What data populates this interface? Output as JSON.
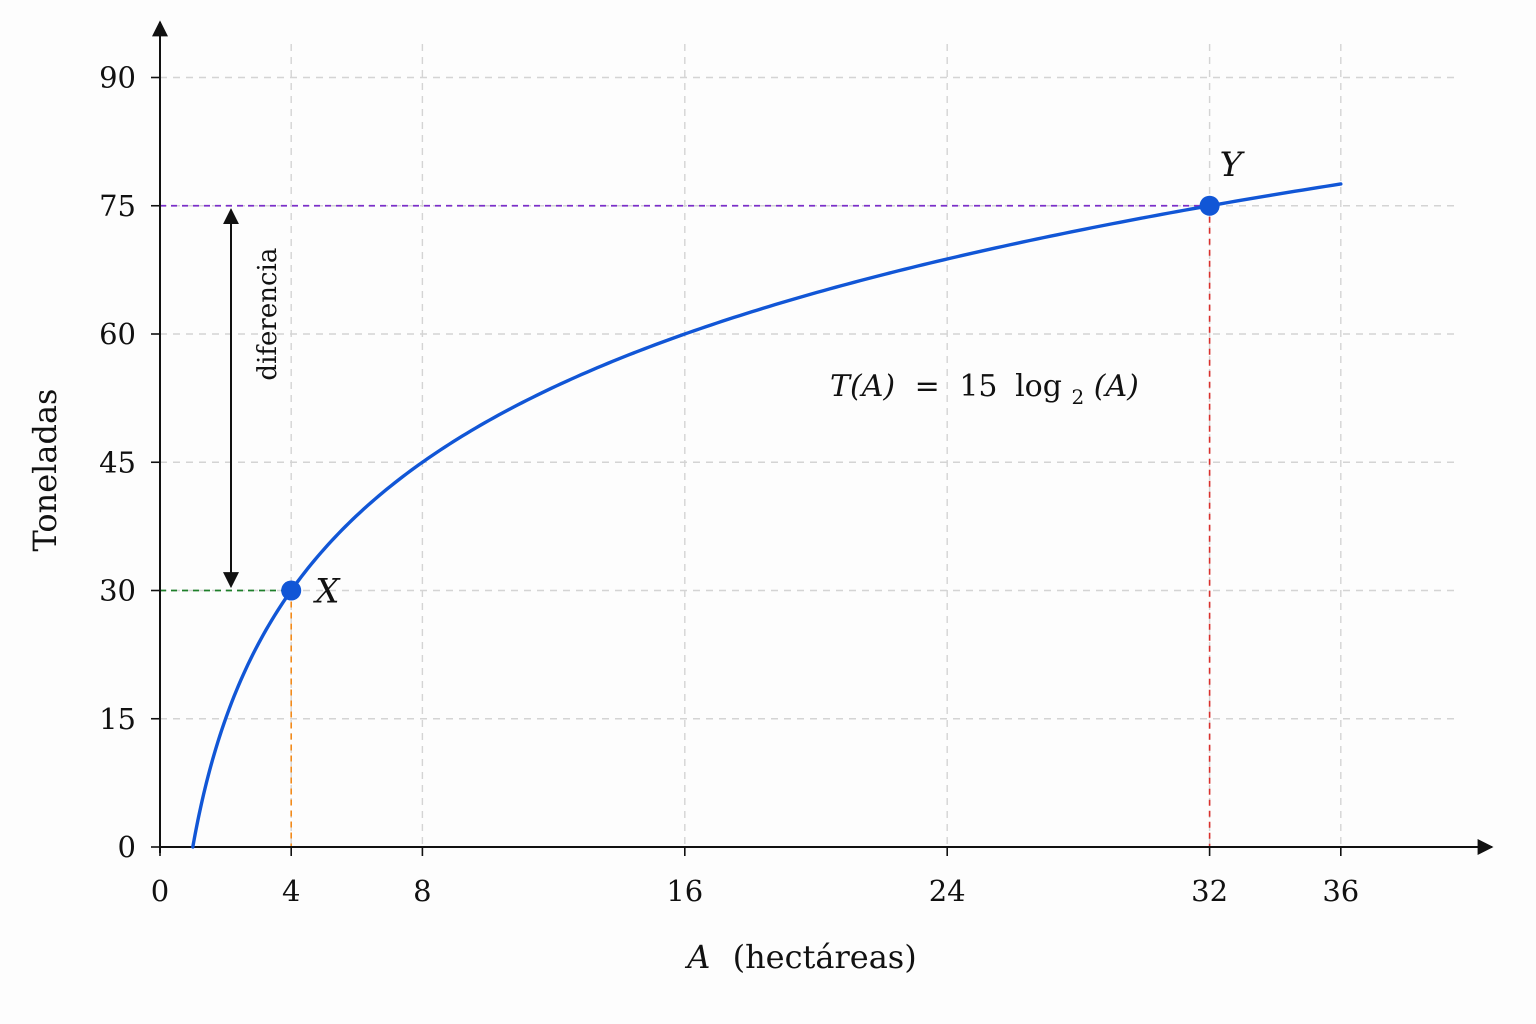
{
  "chart_data": {
    "type": "line",
    "title": "",
    "xlabel": "A (hectáreas)",
    "xlabel_var": "A",
    "xlabel_rest": "(hectáreas)",
    "ylabel": "Toneladas",
    "xlim": [
      0,
      36
    ],
    "ylim": [
      0,
      90
    ],
    "x_ticks": [
      0,
      4,
      8,
      16,
      24,
      32,
      36
    ],
    "y_ticks": [
      0,
      15,
      30,
      45,
      60,
      75,
      90
    ],
    "grid": true,
    "series": [
      {
        "function": "15*log2(A)",
        "color": "#1156d6",
        "x": [
          1,
          1.5,
          2,
          3,
          4,
          6,
          8,
          12,
          16,
          20,
          24,
          28,
          32,
          36
        ],
        "y": [
          0,
          8.77,
          15,
          23.77,
          30,
          38.77,
          45,
          53.77,
          60,
          64.83,
          68.77,
          72.11,
          75,
          77.55
        ]
      }
    ],
    "formula": {
      "lhs": "T(A)",
      "equals": "=",
      "coef": "15",
      "fn": "log",
      "base": "2",
      "arg": "(A)"
    },
    "points": [
      {
        "label": "X",
        "x": 4,
        "y": 30,
        "guide_color": "#f28a1b",
        "level_color": "#1e7f2a"
      },
      {
        "label": "Y",
        "x": 32,
        "y": 75,
        "guide_color": "#d9302c",
        "level_color": "#7b2fc9"
      }
    ],
    "annotation": {
      "text": "diferencia",
      "from_y": 30,
      "to_y": 75
    }
  }
}
